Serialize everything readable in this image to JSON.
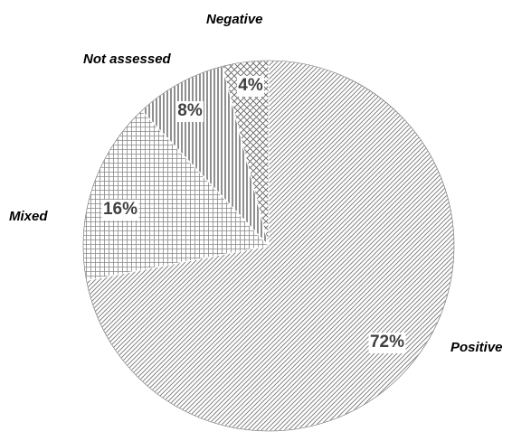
{
  "chart_data": {
    "type": "pie",
    "title": "",
    "slices": [
      {
        "label": "Positive",
        "value": 72,
        "value_label": "72%",
        "pattern": "diagonal-hatch"
      },
      {
        "label": "Mixed",
        "value": 16,
        "value_label": "16%",
        "pattern": "fine-grid"
      },
      {
        "label": "Not assessed",
        "value": 8,
        "value_label": "8%",
        "pattern": "vertical-lines"
      },
      {
        "label": "Negative",
        "value": 4,
        "value_label": "4%",
        "pattern": "cross-hatch"
      }
    ],
    "start_angle": "12 o'clock",
    "direction": "clockwise",
    "legend": "none",
    "colors": {
      "line": "#555555",
      "outline": "#666666",
      "background": "#ffffff",
      "value_text": "#404040",
      "category_text": "#000000"
    }
  }
}
